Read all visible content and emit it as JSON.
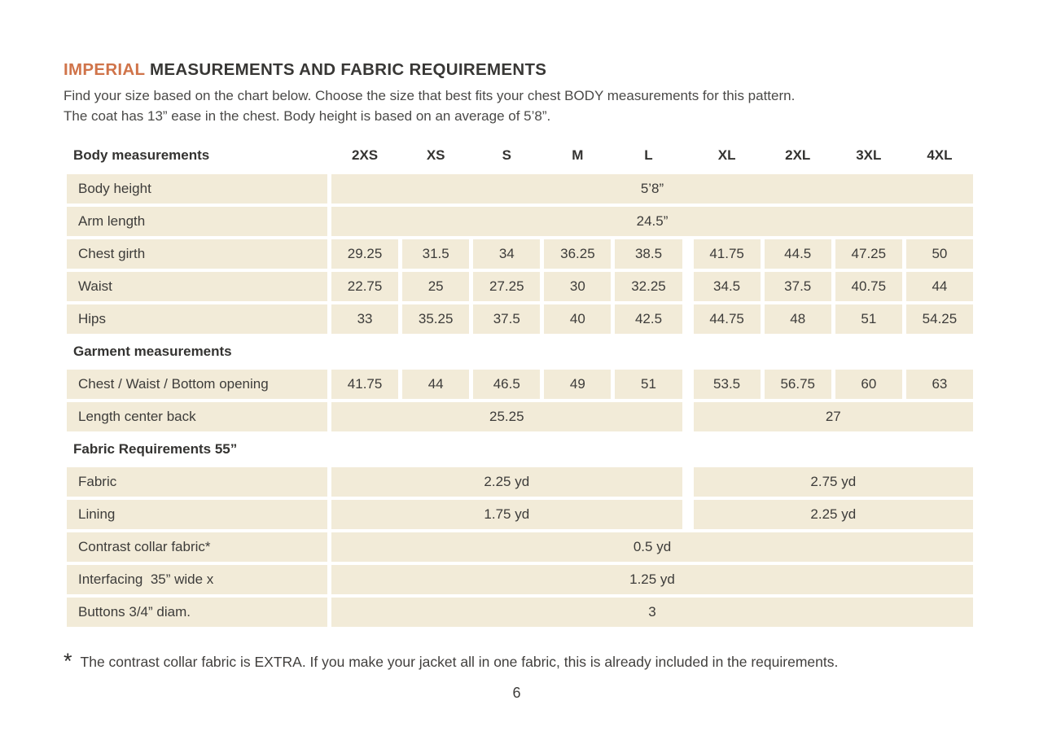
{
  "colors": {
    "accent_orange": "#d0744a",
    "cell_background": "#f2ebd8",
    "text": "#3d3c3a"
  },
  "header": {
    "title_accent": "IMPERIAL",
    "title_rest": " MEASUREMENTS AND FABRIC REQUIREMENTS",
    "intro_line1": "Find your size based on the chart below. Choose the size that best fits your chest BODY measurements for this pattern.",
    "intro_line2": "The coat has 13” ease in the chest. Body height is based on an average of 5’8”."
  },
  "table": {
    "header_label": "Body measurements",
    "sizes": [
      "2XS",
      "XS",
      "S",
      "M",
      "L",
      "XL",
      "2XL",
      "3XL",
      "4XL"
    ],
    "rows": [
      {
        "type": "span-all",
        "label": "Body height",
        "value": "5’8”"
      },
      {
        "type": "span-all",
        "label": "Arm length",
        "value": "24.5”"
      },
      {
        "type": "cells",
        "label": "Chest girth",
        "values": [
          "29.25",
          "31.5",
          "34",
          "36.25",
          "38.5",
          "41.75",
          "44.5",
          "47.25",
          "50"
        ]
      },
      {
        "type": "cells",
        "label": "Waist",
        "values": [
          "22.75",
          "25",
          "27.25",
          "30",
          "32.25",
          "34.5",
          "37.5",
          "40.75",
          "44"
        ]
      },
      {
        "type": "cells",
        "label": "Hips",
        "values": [
          "33",
          "35.25",
          "37.5",
          "40",
          "42.5",
          "44.75",
          "48",
          "51",
          "54.25"
        ]
      },
      {
        "type": "heading",
        "label": "Garment measurements"
      },
      {
        "type": "cells",
        "label": "Chest / Waist / Bottom opening",
        "values": [
          "41.75",
          "44",
          "46.5",
          "49",
          "51",
          "53.5",
          "56.75",
          "60",
          "63"
        ]
      },
      {
        "type": "split",
        "label": "Length center back",
        "left": "25.25",
        "right": "27"
      },
      {
        "type": "heading",
        "label": "Fabric Requirements 55”"
      },
      {
        "type": "split",
        "label": "Fabric",
        "left": "2.25 yd",
        "right": "2.75 yd"
      },
      {
        "type": "split",
        "label": "Lining",
        "left": "1.75 yd",
        "right": "2.25 yd"
      },
      {
        "type": "span-all",
        "label": "Contrast collar fabric*",
        "value": "0.5 yd"
      },
      {
        "type": "span-all",
        "label": "Interfacing  35” wide x",
        "value": "1.25 yd"
      },
      {
        "type": "span-all",
        "label": "Buttons 3/4” diam.",
        "value": "3"
      }
    ]
  },
  "footnote": {
    "marker": "*",
    "text": "The contrast collar fabric is EXTRA. If you make your jacket all in one fabric, this is already included in the requirements."
  },
  "page_number": "6"
}
